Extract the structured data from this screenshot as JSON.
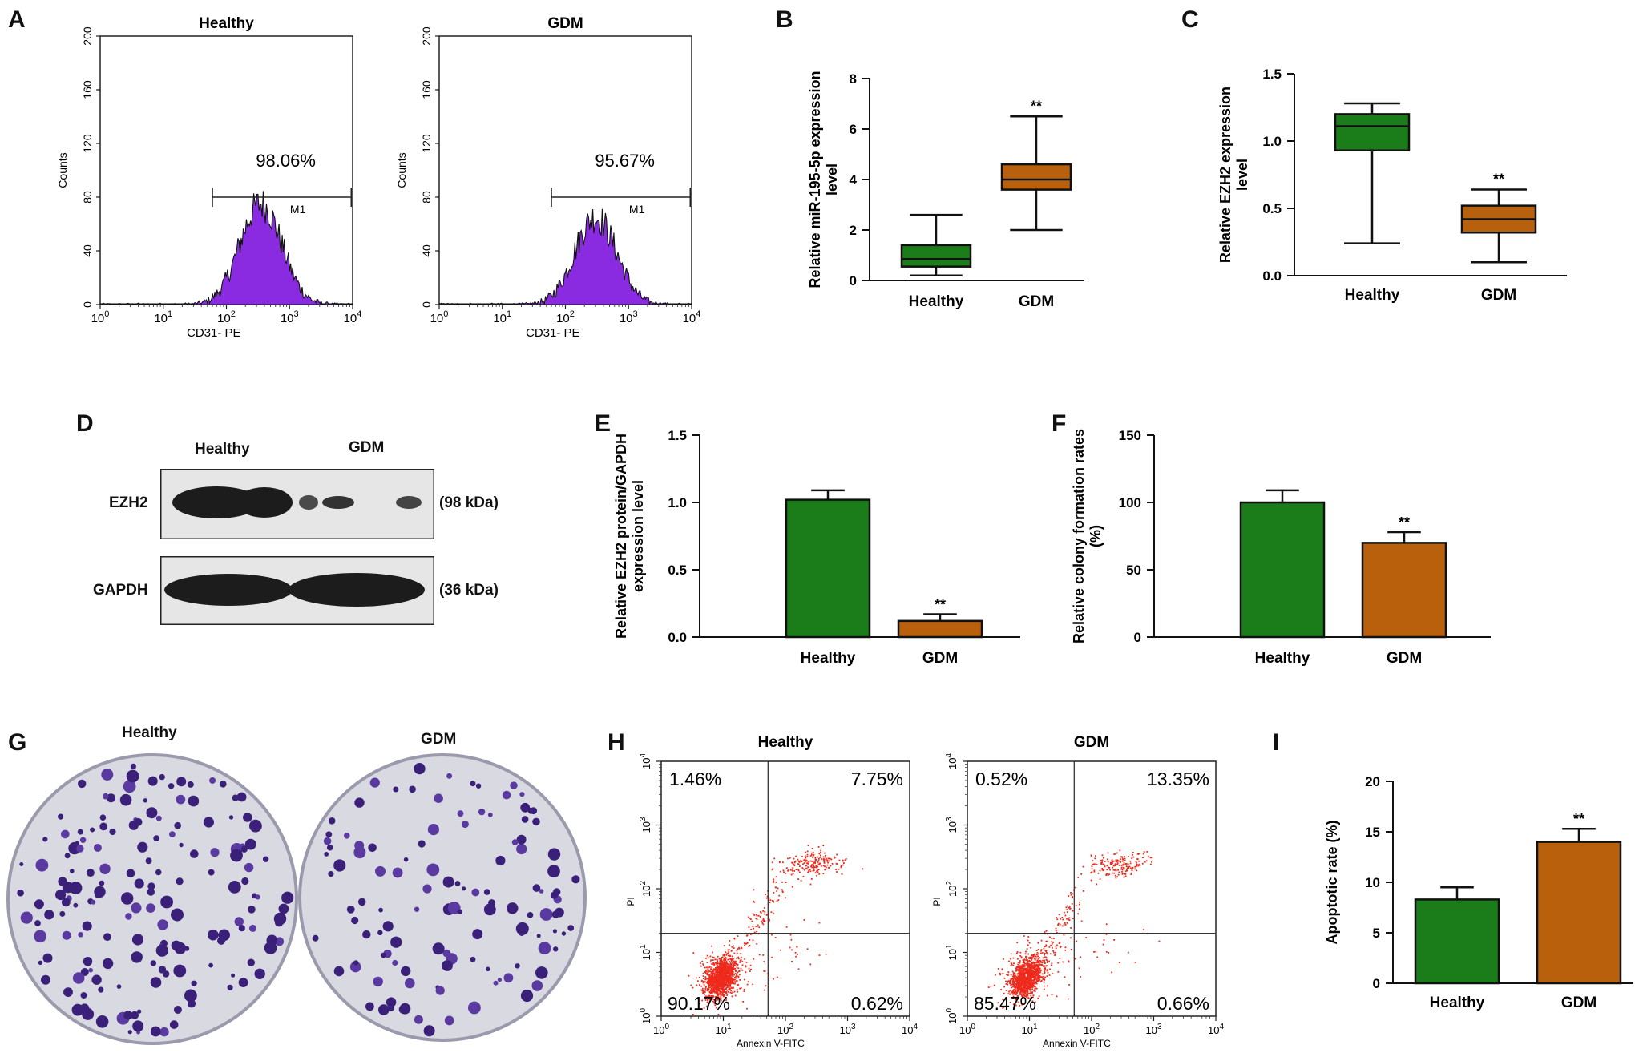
{
  "panels": {
    "A": "A",
    "B": "B",
    "C": "C",
    "D": "D",
    "E": "E",
    "F": "F",
    "G": "G",
    "H": "H",
    "I": "I"
  },
  "group_labels": {
    "healthy": "Healthy",
    "gdm": "GDM"
  },
  "colors": {
    "healthy": "#1a7d1a",
    "gdm": "#b8600c",
    "histogram": "#8a2be2",
    "dots": "#ee2a1c"
  },
  "western_blot": {
    "rows": [
      {
        "label": "EZH2",
        "size": "(98 kDa)"
      },
      {
        "label": "GAPDH",
        "size": "(36 kDa)"
      }
    ]
  },
  "colony_plates": {
    "healthy": "Healthy",
    "gdm": "GDM"
  },
  "chart_data": [
    {
      "id": "A-healthy",
      "type": "histogram",
      "title": "Healthy",
      "xlabel": "CD31- PE",
      "ylabel": "Counts",
      "xscale": "log",
      "xlim": [
        1,
        10000
      ],
      "ylim": [
        0,
        200
      ],
      "yticks": [
        "0",
        "40",
        "80",
        "120",
        "160",
        "200"
      ],
      "gate": {
        "label": "M1",
        "from": 60,
        "to": 9500,
        "percent": "98.06%"
      },
      "peak_value": 75,
      "peak_at": 350
    },
    {
      "id": "A-gdm",
      "type": "histogram",
      "title": "GDM",
      "xlabel": "CD31- PE",
      "ylabel": "Counts",
      "xscale": "log",
      "xlim": [
        1,
        10000
      ],
      "ylim": [
        0,
        200
      ],
      "yticks": [
        "0",
        "40",
        "80",
        "120",
        "160",
        "200"
      ],
      "gate": {
        "label": "M1",
        "from": 60,
        "to": 9500,
        "percent": "95.67%"
      },
      "peak_value": 65,
      "peak_at": 300
    },
    {
      "id": "B",
      "type": "box",
      "ylabel": "Relative miR-195-5p expression level",
      "ylim": [
        0,
        8
      ],
      "yticks": [
        0,
        2,
        4,
        6,
        8
      ],
      "categories": [
        "Healthy",
        "GDM"
      ],
      "boxes": [
        {
          "min": 0.2,
          "q1": 0.55,
          "median": 0.85,
          "q3": 1.4,
          "max": 2.6
        },
        {
          "min": 2.0,
          "q1": 3.6,
          "median": 4.0,
          "q3": 4.6,
          "max": 6.5
        }
      ],
      "annotations": [
        "",
        "**"
      ]
    },
    {
      "id": "C",
      "type": "box",
      "ylabel": "Relative EZH2 expression level",
      "ylim": [
        0,
        1.5
      ],
      "yticks": [
        "0.0",
        "0.5",
        "1.0",
        "1.5"
      ],
      "categories": [
        "Healthy",
        "GDM"
      ],
      "boxes": [
        {
          "min": 0.24,
          "q1": 0.93,
          "median": 1.11,
          "q3": 1.2,
          "max": 1.28
        },
        {
          "min": 0.1,
          "q1": 0.32,
          "median": 0.42,
          "q3": 0.52,
          "max": 0.64
        }
      ],
      "annotations": [
        "",
        "**"
      ]
    },
    {
      "id": "E",
      "type": "bar",
      "ylabel": "Relative EZH2 protein/GAPDH expression level",
      "ylim": [
        0,
        1.5
      ],
      "yticks": [
        "0.0",
        "0.5",
        "1.0",
        "1.5"
      ],
      "categories": [
        "Healthy",
        "GDM"
      ],
      "values": [
        1.02,
        0.12
      ],
      "errors": [
        0.07,
        0.05
      ],
      "annotations": [
        "",
        "**"
      ]
    },
    {
      "id": "F",
      "type": "bar",
      "ylabel": "Relative colony formation rates (%)",
      "ylim": [
        0,
        150
      ],
      "yticks": [
        "0",
        "50",
        "100",
        "150"
      ],
      "categories": [
        "Healthy",
        "GDM"
      ],
      "values": [
        100,
        70
      ],
      "errors": [
        9,
        8
      ],
      "annotations": [
        "",
        "**"
      ]
    },
    {
      "id": "H-healthy",
      "type": "scatter",
      "title": "Healthy",
      "xlabel": "Annexin V-FITC",
      "ylabel": "PI",
      "xscale": "log",
      "yscale": "log",
      "xlim": [
        1,
        10000
      ],
      "ylim": [
        1,
        10000
      ],
      "quadrants": {
        "ul": "1.46%",
        "ur": "7.75%",
        "ll": "90.17%",
        "lr": "0.62%"
      }
    },
    {
      "id": "H-gdm",
      "type": "scatter",
      "title": "GDM",
      "xlabel": "Annexin V-FITC",
      "ylabel": "PI",
      "xscale": "log",
      "yscale": "log",
      "xlim": [
        1,
        10000
      ],
      "ylim": [
        1,
        10000
      ],
      "quadrants": {
        "ul": "0.52%",
        "ur": "13.35%",
        "ll": "85.47%",
        "lr": "0.66%"
      }
    },
    {
      "id": "I",
      "type": "bar",
      "ylabel": "Apoptotic rate (%)",
      "ylim": [
        0,
        20
      ],
      "yticks": [
        "0",
        "5",
        "10",
        "15",
        "20"
      ],
      "categories": [
        "Healthy",
        "GDM"
      ],
      "values": [
        8.3,
        14.0
      ],
      "errors": [
        1.2,
        1.3
      ],
      "annotations": [
        "",
        "**"
      ]
    }
  ]
}
